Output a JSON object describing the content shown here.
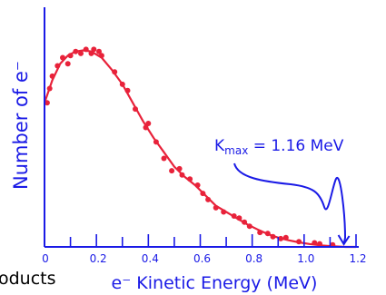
{
  "chart_data": {
    "type": "scatter",
    "title": "",
    "xlabel": "e⁻ Kinetic Energy (MeV)",
    "ylabel": "Number of e⁻",
    "xlim": [
      0,
      1.25
    ],
    "ylim": [
      0,
      1.05
    ],
    "x_ticks": [
      "0",
      "0.2",
      "0.4",
      "0.6",
      "0.8",
      "1.0",
      "1.2"
    ],
    "x_tick_values": [
      0,
      0.2,
      0.4,
      0.6,
      0.8,
      1.0,
      1.2
    ],
    "grid": false,
    "legend": "none",
    "series": [
      {
        "kind": "points",
        "color": "#e8223a",
        "points": [
          [
            0.01,
            0.7
          ],
          [
            0.02,
            0.77
          ],
          [
            0.03,
            0.83
          ],
          [
            0.05,
            0.88
          ],
          [
            0.07,
            0.92
          ],
          [
            0.09,
            0.89
          ],
          [
            0.1,
            0.93
          ],
          [
            0.12,
            0.95
          ],
          [
            0.14,
            0.94
          ],
          [
            0.16,
            0.96
          ],
          [
            0.18,
            0.94
          ],
          [
            0.19,
            0.96
          ],
          [
            0.21,
            0.95
          ],
          [
            0.22,
            0.93
          ],
          [
            0.27,
            0.85
          ],
          [
            0.3,
            0.79
          ],
          [
            0.32,
            0.76
          ],
          [
            0.35,
            0.67
          ],
          [
            0.39,
            0.58
          ],
          [
            0.4,
            0.6
          ],
          [
            0.43,
            0.51
          ],
          [
            0.46,
            0.43
          ],
          [
            0.49,
            0.37
          ],
          [
            0.52,
            0.38
          ],
          [
            0.53,
            0.35
          ],
          [
            0.56,
            0.33
          ],
          [
            0.59,
            0.3
          ],
          [
            0.61,
            0.26
          ],
          [
            0.63,
            0.23
          ],
          [
            0.66,
            0.19
          ],
          [
            0.69,
            0.17
          ],
          [
            0.73,
            0.15
          ],
          [
            0.75,
            0.14
          ],
          [
            0.77,
            0.12
          ],
          [
            0.79,
            0.1
          ],
          [
            0.83,
            0.07
          ],
          [
            0.86,
            0.065
          ],
          [
            0.88,
            0.05
          ],
          [
            0.91,
            0.04
          ],
          [
            0.93,
            0.045
          ],
          [
            0.98,
            0.025
          ],
          [
            1.04,
            0.02
          ],
          [
            1.06,
            0.015
          ],
          [
            1.11,
            0.01
          ]
        ]
      },
      {
        "kind": "fit-line",
        "color": "#e8223a",
        "points": [
          [
            0.0,
            0.7
          ],
          [
            0.03,
            0.81
          ],
          [
            0.06,
            0.89
          ],
          [
            0.09,
            0.93
          ],
          [
            0.12,
            0.95
          ],
          [
            0.15,
            0.955
          ],
          [
            0.18,
            0.95
          ],
          [
            0.22,
            0.92
          ],
          [
            0.26,
            0.86
          ],
          [
            0.3,
            0.79
          ],
          [
            0.34,
            0.7
          ],
          [
            0.38,
            0.61
          ],
          [
            0.42,
            0.53
          ],
          [
            0.46,
            0.46
          ],
          [
            0.5,
            0.39
          ],
          [
            0.54,
            0.34
          ],
          [
            0.58,
            0.3
          ],
          [
            0.62,
            0.25
          ],
          [
            0.66,
            0.2
          ],
          [
            0.7,
            0.17
          ],
          [
            0.74,
            0.14
          ],
          [
            0.78,
            0.11
          ],
          [
            0.82,
            0.085
          ],
          [
            0.86,
            0.062
          ],
          [
            0.9,
            0.045
          ],
          [
            0.94,
            0.032
          ],
          [
            0.98,
            0.022
          ],
          [
            1.02,
            0.014
          ],
          [
            1.06,
            0.008
          ],
          [
            1.1,
            0.004
          ],
          [
            1.14,
            0.0015
          ],
          [
            1.16,
            0.0
          ],
          [
            1.2,
            0.0
          ]
        ]
      }
    ],
    "annotations": [
      {
        "text": "K",
        "subscript": "max",
        "suffix": " = 1.16 MeV",
        "points_to_x": 1.16
      }
    ]
  },
  "page_fragment": "oducts",
  "colors": {
    "axis": "#1a1ae6",
    "data": "#e8223a",
    "annotation": "#1a1ae6",
    "fragment": "#000000"
  }
}
